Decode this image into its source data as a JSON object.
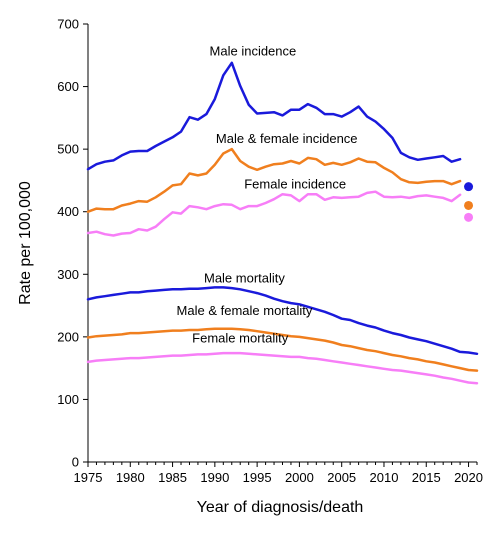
{
  "chart_data": {
    "type": "line",
    "xlabel": "Year of diagnosis/death",
    "ylabel": "Rate per 100,000",
    "xlim": [
      1975,
      2021
    ],
    "ylim": [
      0,
      700
    ],
    "xticks": [
      1975,
      1980,
      1985,
      1990,
      1995,
      2000,
      2005,
      2010,
      2015,
      2020
    ],
    "yticks": [
      0,
      100,
      200,
      300,
      400,
      500,
      600,
      700
    ],
    "grid": false,
    "legend": "inline labels",
    "series": [
      {
        "name": "Male incidence",
        "color": "#1a1adb",
        "x": [
          1975,
          1976,
          1977,
          1978,
          1979,
          1980,
          1981,
          1982,
          1983,
          1984,
          1985,
          1986,
          1987,
          1988,
          1989,
          1990,
          1991,
          1992,
          1993,
          1994,
          1995,
          1996,
          1997,
          1998,
          1999,
          2000,
          2001,
          2002,
          2003,
          2004,
          2005,
          2006,
          2007,
          2008,
          2009,
          2010,
          2011,
          2012,
          2013,
          2014,
          2015,
          2016,
          2017,
          2018,
          2019
        ],
        "y": [
          468,
          476,
          480,
          482,
          490,
          496,
          497,
          497,
          505,
          512,
          519,
          528,
          551,
          547,
          556,
          580,
          618,
          638,
          601,
          571,
          557,
          558,
          559,
          554,
          563,
          563,
          572,
          566,
          556,
          556,
          552,
          559,
          568,
          552,
          544,
          532,
          518,
          494,
          487,
          483,
          485,
          487,
          489,
          480,
          484
        ]
      },
      {
        "name": "Male & female incidence",
        "color": "#f07f1e",
        "x": [
          1975,
          1976,
          1977,
          1978,
          1979,
          1980,
          1981,
          1982,
          1983,
          1984,
          1985,
          1986,
          1987,
          1988,
          1989,
          1990,
          1991,
          1992,
          1993,
          1994,
          1995,
          1996,
          1997,
          1998,
          1999,
          2000,
          2001,
          2002,
          2003,
          2004,
          2005,
          2006,
          2007,
          2008,
          2009,
          2010,
          2011,
          2012,
          2013,
          2014,
          2015,
          2016,
          2017,
          2018,
          2019
        ],
        "y": [
          400,
          405,
          404,
          404,
          410,
          413,
          417,
          416,
          423,
          432,
          442,
          444,
          461,
          458,
          461,
          475,
          493,
          500,
          481,
          472,
          467,
          472,
          476,
          477,
          481,
          477,
          486,
          484,
          475,
          478,
          475,
          479,
          485,
          480,
          479,
          470,
          463,
          452,
          447,
          446,
          448,
          449,
          449,
          444,
          449
        ]
      },
      {
        "name": "Female incidence",
        "color": "#f77ef7",
        "x": [
          1975,
          1976,
          1977,
          1978,
          1979,
          1980,
          1981,
          1982,
          1983,
          1984,
          1985,
          1986,
          1987,
          1988,
          1989,
          1990,
          1991,
          1992,
          1993,
          1994,
          1995,
          1996,
          1997,
          1998,
          1999,
          2000,
          2001,
          2002,
          2003,
          2004,
          2005,
          2006,
          2007,
          2008,
          2009,
          2010,
          2011,
          2012,
          2013,
          2014,
          2015,
          2016,
          2017,
          2018,
          2019
        ],
        "y": [
          366,
          368,
          364,
          362,
          365,
          366,
          372,
          370,
          376,
          388,
          399,
          397,
          409,
          407,
          404,
          409,
          412,
          411,
          404,
          409,
          409,
          414,
          420,
          428,
          426,
          417,
          428,
          428,
          419,
          423,
          422,
          423,
          424,
          430,
          432,
          424,
          423,
          424,
          422,
          425,
          426,
          424,
          422,
          417,
          427
        ]
      },
      {
        "name": "Male mortality",
        "color": "#1a1adb",
        "x": [
          1975,
          1976,
          1977,
          1978,
          1979,
          1980,
          1981,
          1982,
          1983,
          1984,
          1985,
          1986,
          1987,
          1988,
          1989,
          1990,
          1991,
          1992,
          1993,
          1994,
          1995,
          1996,
          1997,
          1998,
          1999,
          2000,
          2001,
          2002,
          2003,
          2004,
          2005,
          2006,
          2007,
          2008,
          2009,
          2010,
          2011,
          2012,
          2013,
          2014,
          2015,
          2016,
          2017,
          2018,
          2019,
          2020,
          2021
        ],
        "y": [
          260,
          263,
          265,
          267,
          269,
          271,
          271,
          273,
          274,
          275,
          276,
          276,
          277,
          277,
          278,
          279,
          279,
          278,
          276,
          273,
          270,
          266,
          261,
          257,
          254,
          252,
          248,
          244,
          240,
          235,
          229,
          227,
          222,
          218,
          215,
          210,
          206,
          203,
          199,
          196,
          193,
          189,
          185,
          181,
          176,
          175,
          173
        ]
      },
      {
        "name": "Male & female mortality",
        "color": "#f07f1e",
        "x": [
          1975,
          1976,
          1977,
          1978,
          1979,
          1980,
          1981,
          1982,
          1983,
          1984,
          1985,
          1986,
          1987,
          1988,
          1989,
          1990,
          1991,
          1992,
          1993,
          1994,
          1995,
          1996,
          1997,
          1998,
          1999,
          2000,
          2001,
          2002,
          2003,
          2004,
          2005,
          2006,
          2007,
          2008,
          2009,
          2010,
          2011,
          2012,
          2013,
          2014,
          2015,
          2016,
          2017,
          2018,
          2019,
          2020,
          2021
        ],
        "y": [
          199,
          201,
          202,
          203,
          204,
          206,
          206,
          207,
          208,
          209,
          210,
          210,
          211,
          211,
          212,
          213,
          213,
          213,
          212,
          211,
          209,
          207,
          205,
          203,
          201,
          200,
          198,
          196,
          194,
          191,
          187,
          185,
          182,
          179,
          177,
          174,
          171,
          169,
          166,
          164,
          161,
          159,
          156,
          153,
          150,
          147,
          146
        ]
      },
      {
        "name": "Female mortality",
        "color": "#f77ef7",
        "x": [
          1975,
          1976,
          1977,
          1978,
          1979,
          1980,
          1981,
          1982,
          1983,
          1984,
          1985,
          1986,
          1987,
          1988,
          1989,
          1990,
          1991,
          1992,
          1993,
          1994,
          1995,
          1996,
          1997,
          1998,
          1999,
          2000,
          2001,
          2002,
          2003,
          2004,
          2005,
          2006,
          2007,
          2008,
          2009,
          2010,
          2011,
          2012,
          2013,
          2014,
          2015,
          2016,
          2017,
          2018,
          2019,
          2020,
          2021
        ],
        "y": [
          160,
          162,
          163,
          164,
          165,
          166,
          166,
          167,
          168,
          169,
          170,
          170,
          171,
          172,
          172,
          173,
          174,
          174,
          174,
          173,
          172,
          171,
          170,
          169,
          168,
          168,
          166,
          165,
          163,
          161,
          159,
          157,
          155,
          153,
          151,
          149,
          147,
          146,
          144,
          142,
          140,
          138,
          135,
          133,
          130,
          127,
          126
        ]
      }
    ],
    "points_2020": [
      {
        "series": "Male incidence",
        "x": 2020,
        "y": 440,
        "color": "#1a1adb"
      },
      {
        "series": "Male & female incidence",
        "x": 2020,
        "y": 410,
        "color": "#f07f1e"
      },
      {
        "series": "Female incidence",
        "x": 2020,
        "y": 391,
        "color": "#f77ef7"
      }
    ],
    "annotations": [
      {
        "text": "Male incidence",
        "x": 1994.5,
        "y": 650
      },
      {
        "text": "Male & female incidence",
        "x": 1998.5,
        "y": 510
      },
      {
        "text": "Female incidence",
        "x": 1999.5,
        "y": 437
      },
      {
        "text": "Male mortality",
        "x": 1993.5,
        "y": 287
      },
      {
        "text": "Male & female mortality",
        "x": 1993.5,
        "y": 235
      },
      {
        "text": "Female mortality",
        "x": 1993,
        "y": 191
      }
    ]
  }
}
